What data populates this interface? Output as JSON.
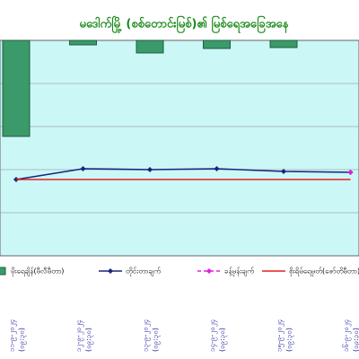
{
  "chart_data": {
    "type": "bar-line",
    "title": "မဒေါက်မြို့ (စစ်တောင်းမြစ်)၏ မြစ်ရေအခြေအနေ",
    "dates": [
      "၁၁-၉-၂၀၂၄",
      "၁၂-၉-၂၀၂၄",
      "၁၃-၉-၂၀၂၄",
      "၁၄-၉-၂၀၂၄",
      "၁၅-၉-၂၀၂၄",
      "၁၆-၉-၂၀၂၄"
    ],
    "times": [
      "(၀၉:၃၀)",
      "(၀၉:၃၀)",
      "(၀၉:၃၀)",
      "(၀၉:၃၀)",
      "(၀၉:၃၀)",
      "(၀၉:၃၀)"
    ],
    "series": [
      {
        "name": "မိုးရေချိန်(မီလီမီတာ)",
        "color": "#3a9a6a",
        "axis": "y2",
        "values": [
          107,
          5,
          14,
          9,
          8,
          null
        ]
      },
      {
        "name": "တိုင်းတာချက်",
        "color": "#1a237e",
        "values": [
          85,
          97,
          96,
          97,
          94,
          93
        ]
      },
      {
        "name": "ခန့်မှန်းချက်",
        "color": "#e020e0",
        "values": [
          null,
          null,
          null,
          null,
          null,
          93
        ]
      },
      {
        "name": "စိုးရိမ်ရေမှတ်(ဇော်တိမီတာ)",
        "color": "#e02020",
        "values": [
          85,
          85,
          85,
          85,
          85,
          85
        ]
      }
    ],
    "ylim": [
      0,
      240
    ],
    "yticks": [
      48,
      96,
      144,
      192
    ],
    "y2lim": [
      0,
      240
    ],
    "grid": true
  }
}
